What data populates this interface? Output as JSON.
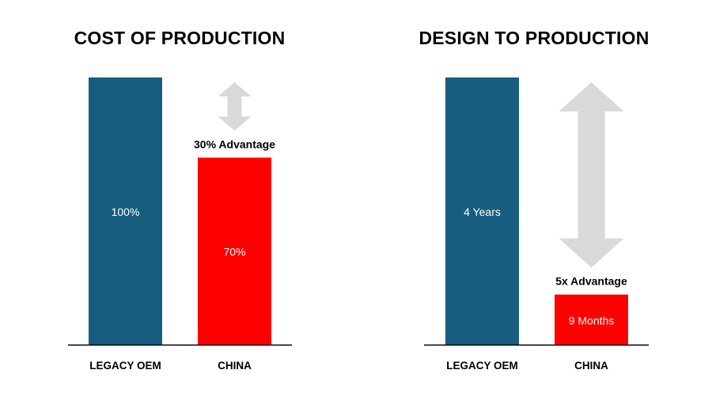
{
  "colors": {
    "legacy": "#175E7E",
    "china": "#FF0000",
    "arrow": "#D9D9D9",
    "axis": "#000000",
    "bar_label": "#FFFFFF"
  },
  "chart_data": [
    {
      "type": "bar",
      "title": "COST OF PRODUCTION",
      "categories": [
        "LEGACY OEM",
        "CHINA"
      ],
      "values": [
        100,
        70
      ],
      "unit": "%",
      "data_labels": [
        "100%",
        "70%"
      ],
      "annotation": "30% Advantage",
      "ylim": [
        0,
        100
      ],
      "grid": false
    },
    {
      "type": "bar",
      "title": "DESIGN TO PRODUCTION",
      "categories": [
        "LEGACY OEM",
        "CHINA"
      ],
      "values": [
        48,
        9
      ],
      "unit": "months",
      "data_labels": [
        "4 Years",
        "9 Months"
      ],
      "annotation": "5x Advantage",
      "ylim": [
        0,
        48
      ],
      "grid": false
    }
  ]
}
